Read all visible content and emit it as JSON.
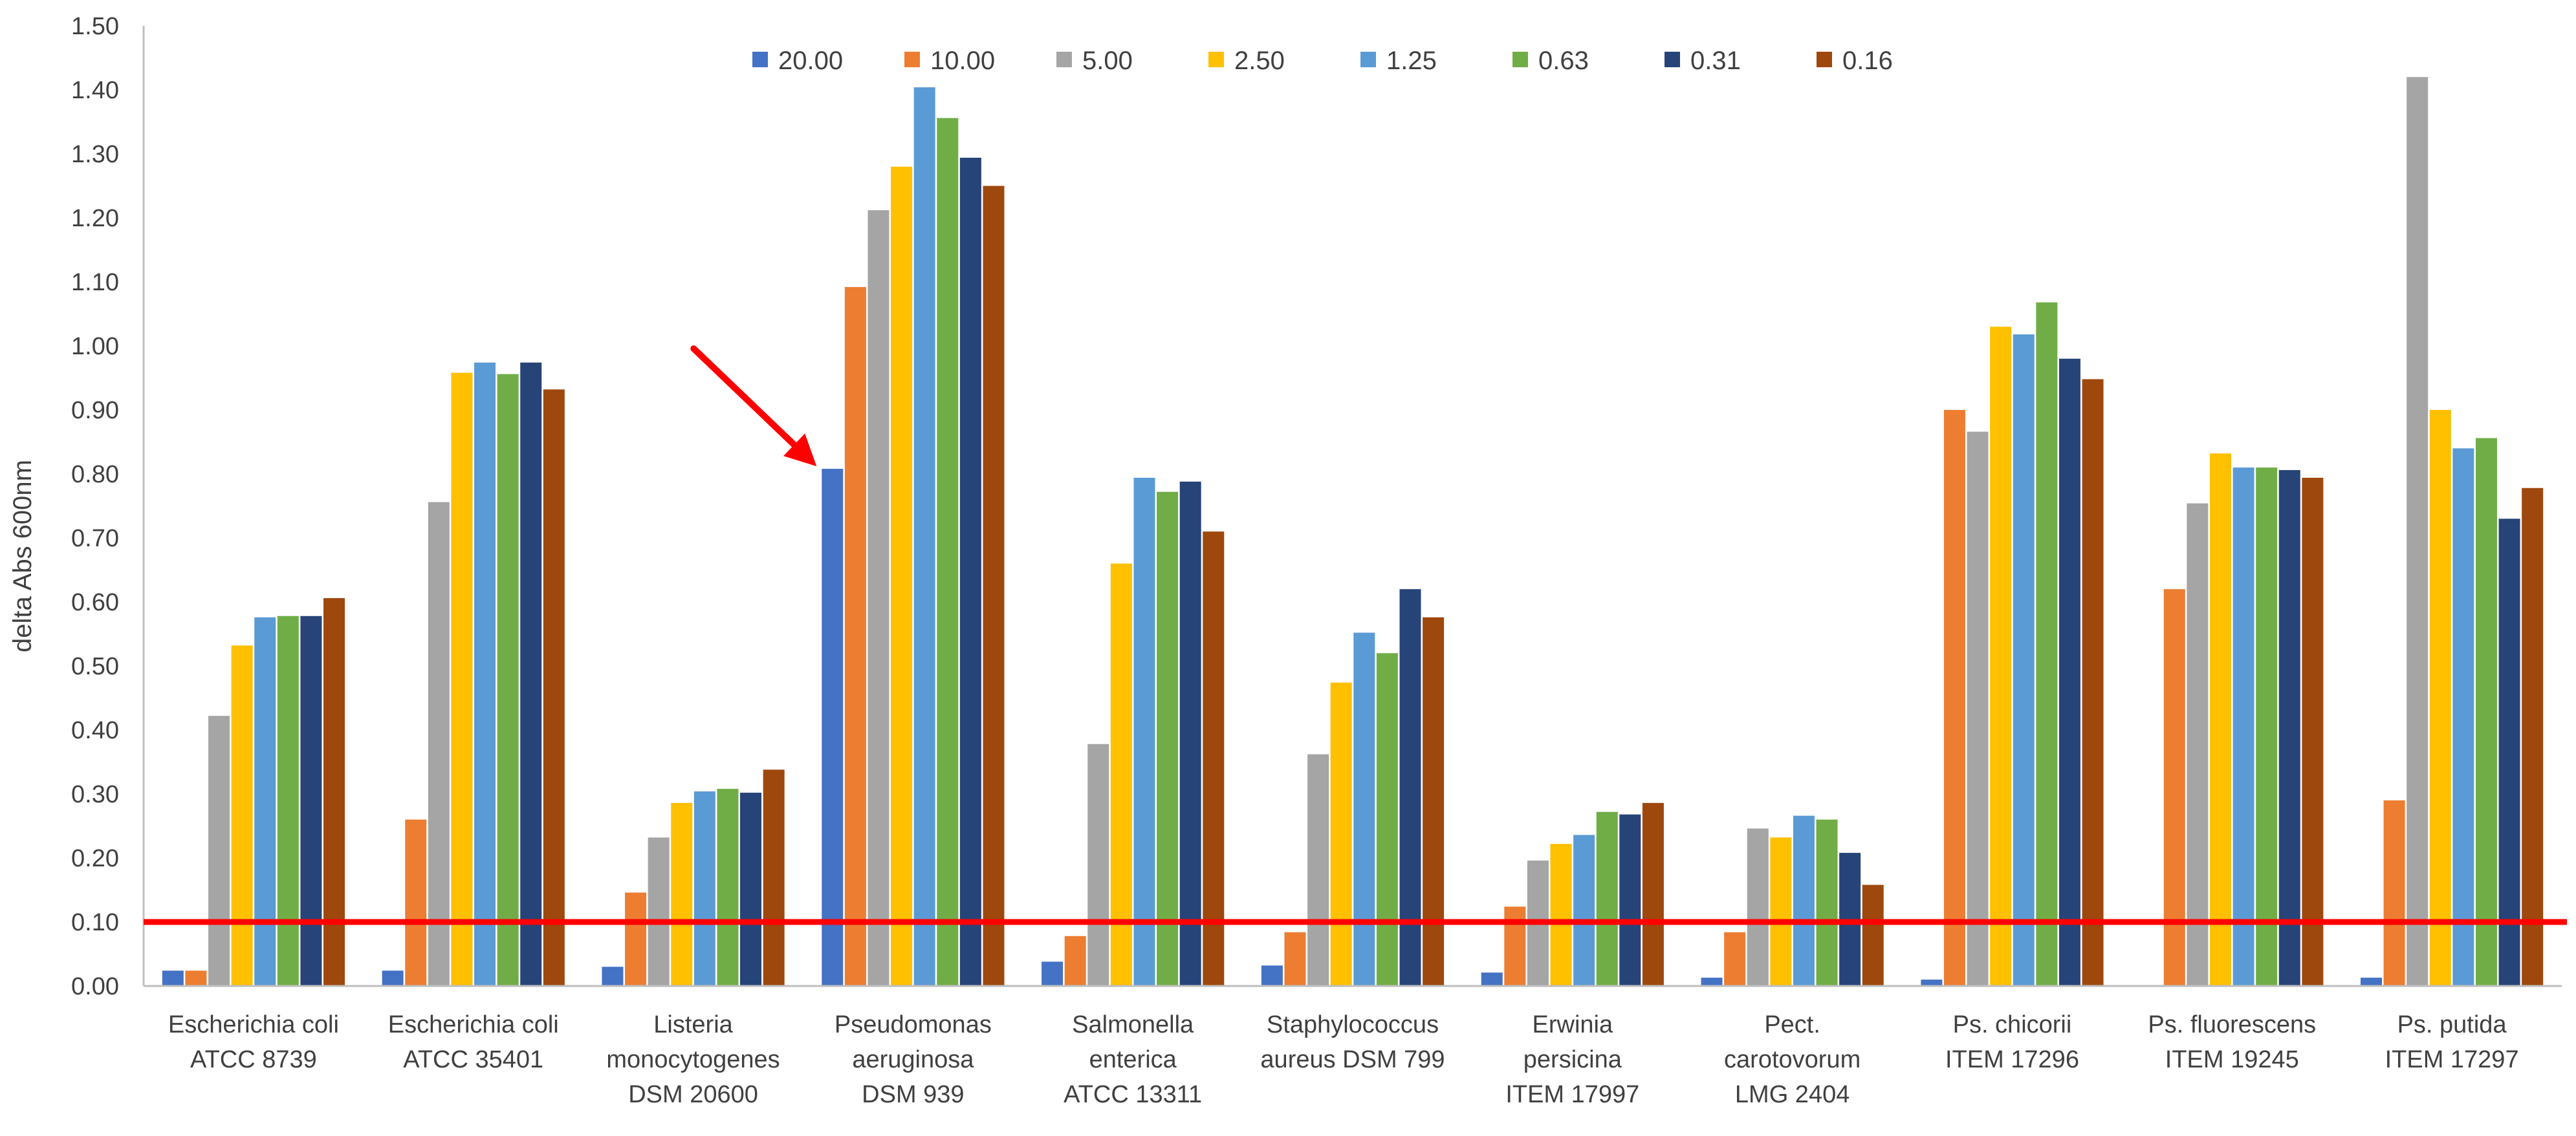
{
  "chart_data": {
    "type": "bar",
    "ylabel": "delta Abs 600nm",
    "xlabel": "",
    "ylim": [
      0,
      1.5
    ],
    "ytick_step": 0.1,
    "ytick_labels": [
      "0.00",
      "0.10",
      "0.20",
      "0.30",
      "0.40",
      "0.50",
      "0.60",
      "0.70",
      "0.80",
      "0.90",
      "1.00",
      "1.10",
      "1.20",
      "1.30",
      "1.40",
      "1.50"
    ],
    "grid": false,
    "legend_placement": "top-center",
    "categories": [
      [
        "Escherichia coli",
        "ATCC 8739"
      ],
      [
        "Escherichia coli",
        "ATCC 35401"
      ],
      [
        "Listeria",
        "monocytogenes",
        "DSM 20600"
      ],
      [
        "Pseudomonas",
        "aeruginosa",
        "DSM 939"
      ],
      [
        "Salmonella",
        "enterica",
        "ATCC 13311"
      ],
      [
        "Staphylococcus",
        "aureus DSM 799"
      ],
      [
        "Erwinia",
        "persicina",
        "ITEM 17997"
      ],
      [
        "Pect.",
        "carotovorum",
        "LMG 2404"
      ],
      [
        "Ps. chicorii",
        "ITEM 17296"
      ],
      [
        "Ps. fluorescens",
        "ITEM 19245"
      ],
      [
        "Ps. putida",
        "ITEM 17297"
      ]
    ],
    "series": [
      {
        "name": "20.00",
        "color": "#4472C4",
        "values": [
          0.024,
          0.024,
          0.03,
          0.808,
          0.038,
          0.032,
          0.021,
          0.013,
          0.01,
          0.0,
          0.013
        ]
      },
      {
        "name": "10.00",
        "color": "#ED7D31",
        "values": [
          0.024,
          0.26,
          0.146,
          1.092,
          0.078,
          0.084,
          0.124,
          0.084,
          0.9,
          0.62,
          0.29
        ]
      },
      {
        "name": "5.00",
        "color": "#A5A5A5",
        "values": [
          0.422,
          0.756,
          0.232,
          1.212,
          0.378,
          0.362,
          0.196,
          0.246,
          0.866,
          0.754,
          1.42
        ]
      },
      {
        "name": "2.50",
        "color": "#FFC000",
        "values": [
          0.532,
          0.958,
          0.286,
          1.28,
          0.66,
          0.474,
          0.222,
          0.232,
          1.03,
          0.832,
          0.9
        ]
      },
      {
        "name": "1.25",
        "color": "#5B9BD5",
        "values": [
          0.576,
          0.974,
          0.304,
          1.404,
          0.794,
          0.552,
          0.236,
          0.266,
          1.018,
          0.81,
          0.84
        ]
      },
      {
        "name": "0.63",
        "color": "#70AD47",
        "values": [
          0.578,
          0.956,
          0.308,
          1.356,
          0.772,
          0.52,
          0.272,
          0.26,
          1.068,
          0.81,
          0.856
        ]
      },
      {
        "name": "0.31",
        "color": "#264478",
        "values": [
          0.578,
          0.974,
          0.302,
          1.294,
          0.788,
          0.62,
          0.268,
          0.208,
          0.98,
          0.806,
          0.73
        ]
      },
      {
        "name": "0.16",
        "color": "#9E480E",
        "values": [
          0.606,
          0.932,
          0.338,
          1.25,
          0.71,
          0.576,
          0.286,
          0.158,
          0.948,
          0.794,
          0.778
        ]
      }
    ],
    "threshold_line": {
      "y": 0.1,
      "color": "#FF0000"
    },
    "annotation_arrow": {
      "target_category": "Pseudomonas aeruginosa DSM 939",
      "target_series": "20.00",
      "color": "#FF0000"
    },
    "colors": {
      "axis": "#BFBFBF",
      "text": "#404040"
    }
  }
}
